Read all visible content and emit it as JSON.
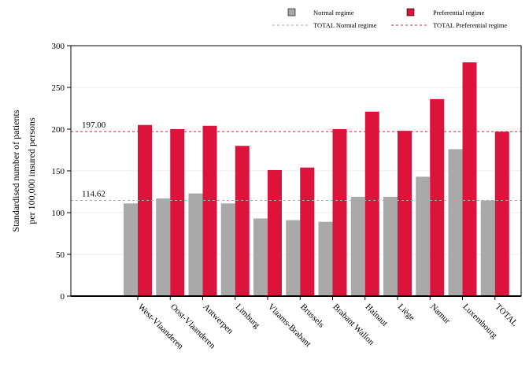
{
  "chart_data": {
    "type": "bar",
    "title": "",
    "xlabel": "",
    "ylabel_lines": [
      "Standardised number of patients",
      "per 100,000 insured persons"
    ],
    "ylim": [
      0,
      300
    ],
    "yticks": [
      0,
      50,
      100,
      150,
      200,
      250,
      300
    ],
    "grid": true,
    "legend_position": "top-right",
    "categories": [
      "West-Vlaanderen",
      "Oost-Vlaanderen",
      "Antwerpen",
      "Limburg",
      "Vlaams-Brabant",
      "Brussels",
      "Brabant Wallon",
      "Hainaut",
      "Liège",
      "Namur",
      "Luxembourg",
      "TOTAL"
    ],
    "series": [
      {
        "name": "Normal regime",
        "color": "#a9a9a9",
        "values": [
          111,
          117,
          123,
          111,
          93,
          91,
          89,
          119,
          119,
          143,
          176,
          114.62
        ]
      },
      {
        "name": "Preferential regime",
        "color": "#dc143c",
        "values": [
          205,
          200,
          204,
          180,
          151,
          154,
          200,
          221,
          198,
          236,
          280,
          197.0
        ]
      }
    ],
    "reference_lines": [
      {
        "name": "TOTAL Normal regime",
        "value": 114.62,
        "label": "114.62",
        "color": "#a9a9a9"
      },
      {
        "name": "TOTAL Preferential regime",
        "value": 197.0,
        "label": "197.00",
        "color": "#dc143c"
      }
    ]
  }
}
